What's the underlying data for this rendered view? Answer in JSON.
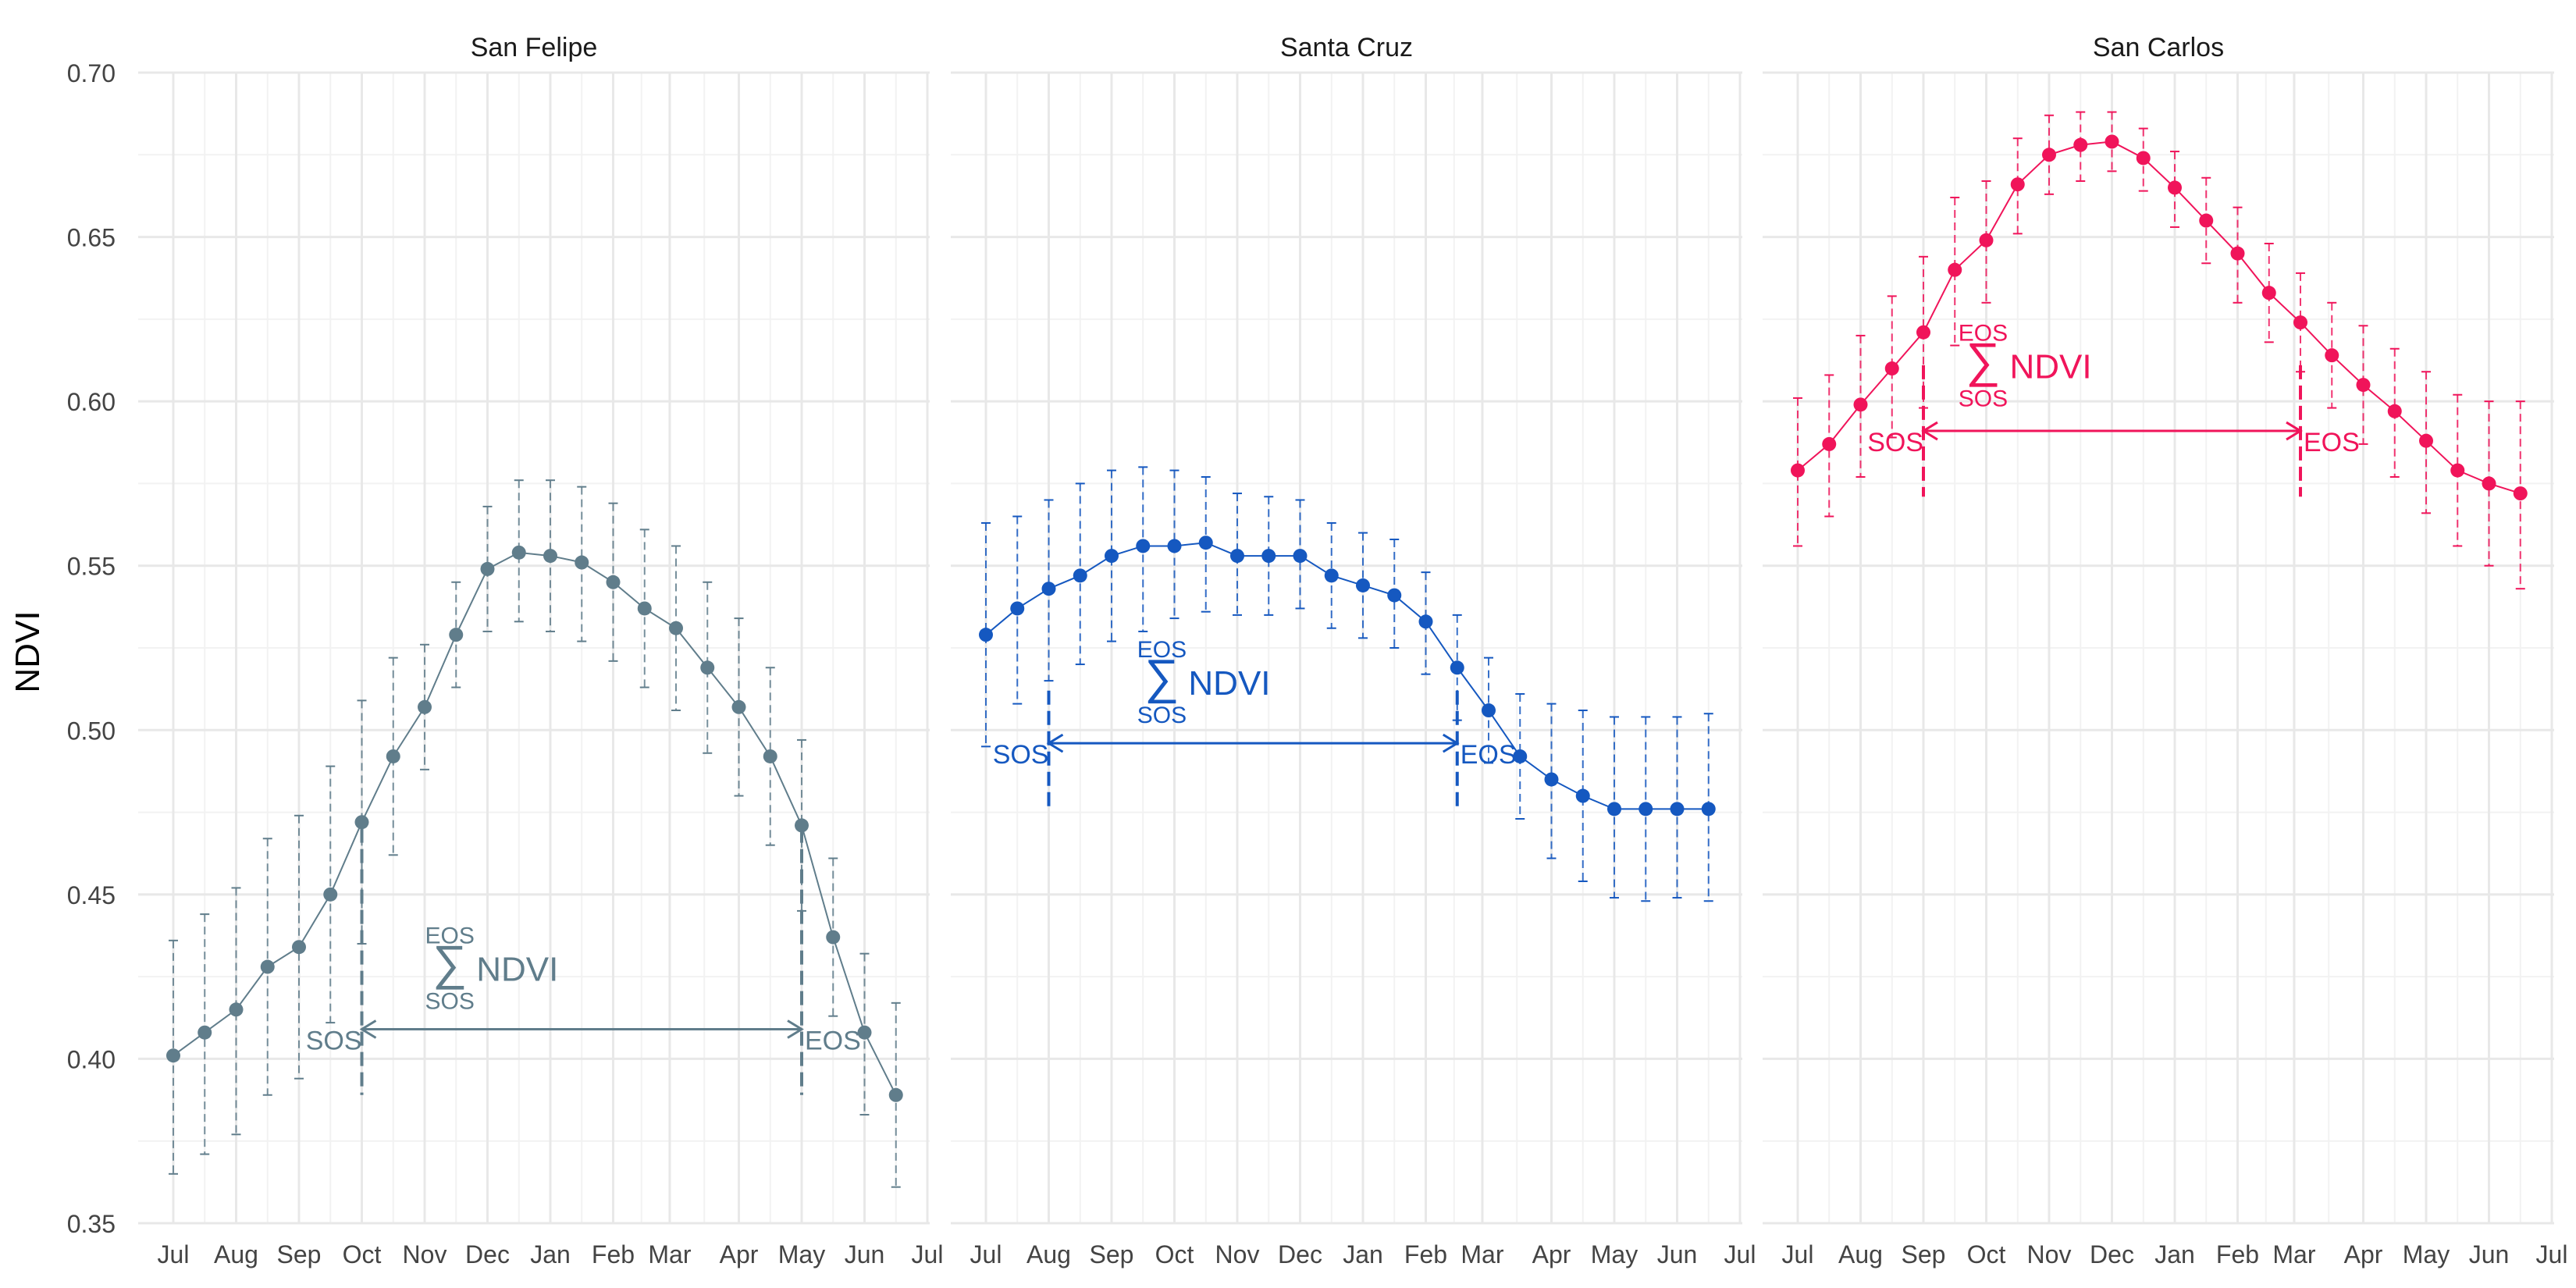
{
  "chart_data": {
    "type": "line",
    "ylabel": "NDVI",
    "ylim": [
      0.35,
      0.7
    ],
    "y_ticks": [
      0.35,
      0.4,
      0.45,
      0.5,
      0.55,
      0.6,
      0.65,
      0.7
    ],
    "y_tick_labels": [
      "0.35",
      "0.40",
      "0.45",
      "0.50",
      "0.55",
      "0.60",
      "0.65",
      "0.70"
    ],
    "grid": true,
    "x_tick_labels": [
      "Jul",
      "Aug",
      "Sep",
      "Oct",
      "Nov",
      "Dec",
      "Jan",
      "Feb",
      "Mar",
      "Apr",
      "May",
      "Jun",
      "Jul"
    ],
    "annotation": {
      "sos": "SOS",
      "eos": "EOS",
      "sum": "∑",
      "ndvi": "NDVI"
    },
    "panels": [
      {
        "title": "San Felipe",
        "color": "#607D8B",
        "x_tick_months": [
          0,
          1,
          2,
          3,
          4,
          5,
          6,
          7,
          7.9,
          9,
          10,
          11,
          12
        ],
        "x": [
          0,
          0.5,
          1,
          1.5,
          2,
          2.5,
          3,
          3.5,
          4,
          4.5,
          5,
          5.5,
          6,
          6.5,
          7,
          7.5,
          8,
          8.5,
          9,
          9.5,
          10,
          10.5,
          11,
          11.5
        ],
        "values": [
          0.401,
          0.408,
          0.415,
          0.428,
          0.434,
          0.45,
          0.472,
          0.492,
          0.507,
          0.529,
          0.549,
          0.554,
          0.553,
          0.551,
          0.545,
          0.537,
          0.531,
          0.519,
          0.507,
          0.492,
          0.471,
          0.437,
          0.408,
          0.389
        ],
        "err_upper": [
          0.436,
          0.444,
          0.452,
          0.467,
          0.474,
          0.489,
          0.509,
          0.522,
          0.526,
          0.545,
          0.568,
          0.576,
          0.576,
          0.574,
          0.569,
          0.561,
          0.556,
          0.545,
          0.534,
          0.519,
          0.497,
          0.461,
          0.432,
          0.417
        ],
        "err_lower": [
          0.365,
          0.371,
          0.377,
          0.389,
          0.394,
          0.411,
          0.435,
          0.462,
          0.488,
          0.513,
          0.53,
          0.533,
          0.53,
          0.527,
          0.521,
          0.513,
          0.506,
          0.493,
          0.48,
          0.465,
          0.445,
          0.413,
          0.383,
          0.361
        ],
        "sos_x": 3,
        "eos_x": 10,
        "arrow_y": 0.409,
        "line_lo": 0.389,
        "line_hi": 0.47,
        "sum_label_x": 4.4,
        "sum_label_y": 0.4275
      },
      {
        "title": "Santa Cruz",
        "color": "#1558C0",
        "x_tick_months": [
          0,
          1,
          2,
          3,
          4,
          5,
          6,
          7,
          7.9,
          9,
          10,
          11,
          12
        ],
        "x": [
          0,
          0.5,
          1,
          1.5,
          2,
          2.5,
          3,
          3.5,
          4,
          4.5,
          5,
          5.5,
          6,
          6.5,
          7,
          7.5,
          8,
          8.5,
          9,
          9.5,
          10,
          10.5,
          11,
          11.5
        ],
        "values": [
          0.529,
          0.537,
          0.543,
          0.547,
          0.553,
          0.556,
          0.556,
          0.557,
          0.553,
          0.553,
          0.553,
          0.547,
          0.544,
          0.541,
          0.533,
          0.519,
          0.506,
          0.492,
          0.485,
          0.48,
          0.476,
          0.476,
          0.476,
          0.476
        ],
        "err_upper": [
          0.563,
          0.565,
          0.57,
          0.575,
          0.579,
          0.58,
          0.579,
          0.577,
          0.572,
          0.571,
          0.57,
          0.563,
          0.56,
          0.558,
          0.548,
          0.535,
          0.522,
          0.511,
          0.508,
          0.506,
          0.504,
          0.504,
          0.504,
          0.505
        ],
        "err_lower": [
          0.495,
          0.508,
          0.515,
          0.52,
          0.527,
          0.53,
          0.534,
          0.536,
          0.535,
          0.535,
          0.537,
          0.531,
          0.528,
          0.525,
          0.517,
          0.503,
          0.49,
          0.473,
          0.461,
          0.454,
          0.449,
          0.448,
          0.449,
          0.448
        ],
        "sos_x": 1,
        "eos_x": 7.5,
        "arrow_y": 0.496,
        "line_lo": 0.476,
        "line_hi": 0.512,
        "sum_label_x": 2.8,
        "sum_label_y": 0.5145
      },
      {
        "title": "San Carlos",
        "color": "#F0145A",
        "x_tick_months": [
          0,
          1,
          2,
          3,
          4,
          5,
          6,
          7,
          7.9,
          9,
          10,
          11,
          12
        ],
        "x": [
          0,
          0.5,
          1,
          1.5,
          2,
          2.5,
          3,
          3.5,
          4,
          4.5,
          5,
          5.5,
          6,
          6.5,
          7,
          7.5,
          8,
          8.5,
          9,
          9.5,
          10,
          10.5,
          11,
          11.5
        ],
        "values": [
          0.579,
          0.587,
          0.599,
          0.61,
          0.621,
          0.64,
          0.649,
          0.666,
          0.675,
          0.678,
          0.679,
          0.674,
          0.665,
          0.655,
          0.645,
          0.633,
          0.624,
          0.614,
          0.605,
          0.597,
          0.588,
          0.579,
          0.575,
          0.572
        ],
        "err_upper": [
          0.601,
          0.608,
          0.62,
          0.632,
          0.644,
          0.662,
          0.667,
          0.68,
          0.687,
          0.688,
          0.688,
          0.683,
          0.676,
          0.668,
          0.659,
          0.648,
          0.639,
          0.63,
          0.623,
          0.616,
          0.609,
          0.602,
          0.6,
          0.6
        ],
        "err_lower": [
          0.556,
          0.565,
          0.577,
          0.589,
          0.598,
          0.617,
          0.63,
          0.651,
          0.663,
          0.667,
          0.67,
          0.664,
          0.653,
          0.642,
          0.63,
          0.618,
          0.609,
          0.598,
          0.587,
          0.577,
          0.566,
          0.556,
          0.55,
          0.543
        ],
        "sos_x": 2,
        "eos_x": 8,
        "arrow_y": 0.591,
        "line_lo": 0.571,
        "line_hi": 0.611,
        "sum_label_x": 2.95,
        "sum_label_y": 0.6108
      }
    ]
  }
}
